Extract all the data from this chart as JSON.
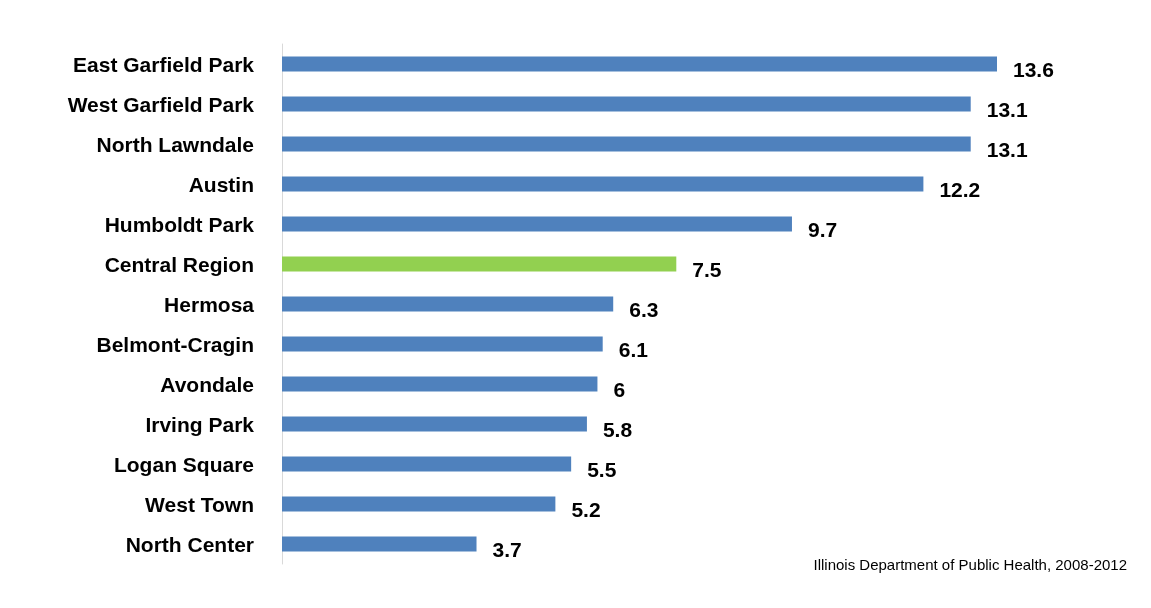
{
  "chart_data": {
    "type": "bar",
    "orientation": "horizontal",
    "categories": [
      "East Garfield Park",
      "West Garfield Park",
      "North Lawndale",
      "Austin",
      "Humboldt Park",
      "Central Region",
      "Hermosa",
      "Belmont-Cragin",
      "Avondale",
      "Irving Park",
      "Logan Square",
      "West Town",
      "North Center"
    ],
    "values": [
      13.6,
      13.1,
      13.1,
      12.2,
      9.7,
      7.5,
      6.3,
      6.1,
      6,
      5.8,
      5.5,
      5.2,
      3.7
    ],
    "colors": [
      "#4f81bd",
      "#4f81bd",
      "#4f81bd",
      "#4f81bd",
      "#4f81bd",
      "#92d050",
      "#4f81bd",
      "#4f81bd",
      "#4f81bd",
      "#4f81bd",
      "#4f81bd",
      "#4f81bd",
      "#4f81bd"
    ],
    "data_labels": true,
    "annotations": [
      "Illinois Department of Public Health, 2008-2012"
    ]
  }
}
